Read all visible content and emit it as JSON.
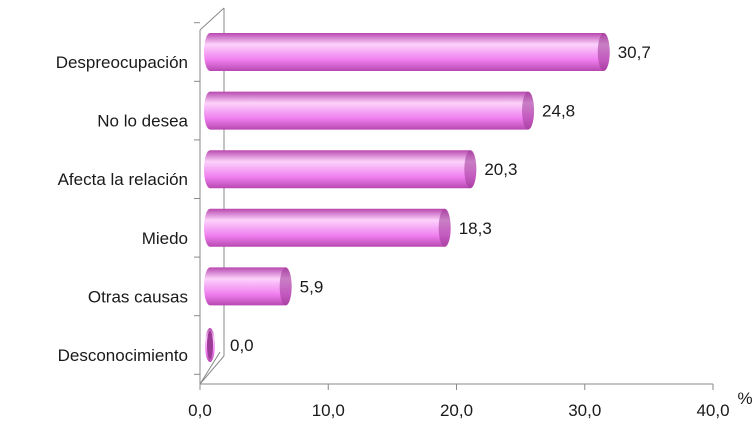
{
  "chart_data": {
    "type": "bar",
    "orientation": "horizontal",
    "style": "3d-cylinder",
    "categories": [
      "Despreocupación",
      "No lo desea",
      "Afecta la relación",
      "Miedo",
      "Otras causas",
      "Desconocimiento"
    ],
    "values": [
      30.7,
      24.8,
      20.3,
      18.3,
      5.9,
      0.0
    ],
    "value_labels": [
      "30,7",
      "24,8",
      "20,3",
      "18,3",
      "5,9",
      "0,0"
    ],
    "xlim": [
      0,
      40
    ],
    "x_ticks": [
      0,
      10,
      20,
      30,
      40
    ],
    "x_tick_labels": [
      "0,0",
      "10,0",
      "20,0",
      "30,0",
      "40,0"
    ],
    "x_unit": "%",
    "grid": false,
    "legend": "none",
    "colors": {
      "bar_fill": "#f080f0",
      "bar_highlight": "#fcd2fb",
      "bar_dark": "#b848b0",
      "bar_cap": "#9e3a98",
      "axis": "#8a8a8a",
      "text": "#1a1a1a"
    }
  }
}
